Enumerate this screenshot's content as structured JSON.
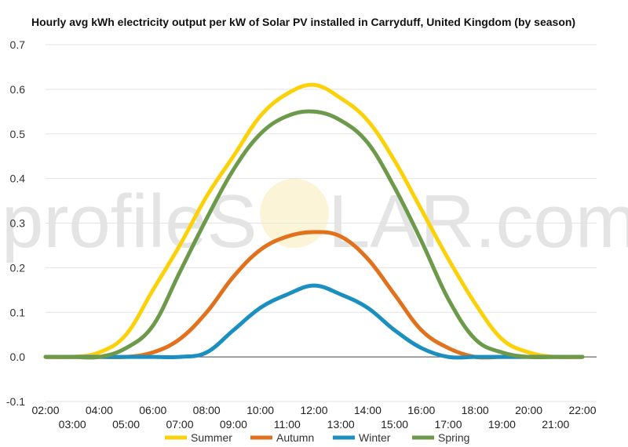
{
  "chart_data": {
    "type": "line",
    "title": "Hourly avg kWh electricity output per kW of Solar PV installed in Carryduff, United Kingdom (by season)",
    "watermark": {
      "left": "profileS",
      "right": "LAR.com",
      "sun_color": "#f3e08a"
    },
    "ylim": [
      -0.1,
      0.7
    ],
    "yticks": [
      "-0.1",
      "0.0",
      "0.1",
      "0.2",
      "0.3",
      "0.4",
      "0.5",
      "0.6",
      "0.7"
    ],
    "x": [
      "02:00",
      "03:00",
      "04:00",
      "05:00",
      "06:00",
      "07:00",
      "08:00",
      "09:00",
      "10:00",
      "11:00",
      "12:00",
      "13:00",
      "14:00",
      "15:00",
      "16:00",
      "17:00",
      "18:00",
      "19:00",
      "20:00",
      "21:00",
      "22:00"
    ],
    "legend_position": "bottom",
    "series": [
      {
        "name": "Summer",
        "color": "#fbd20a",
        "values": [
          0,
          0,
          0.01,
          0.05,
          0.15,
          0.25,
          0.36,
          0.45,
          0.54,
          0.59,
          0.61,
          0.58,
          0.53,
          0.44,
          0.33,
          0.22,
          0.12,
          0.04,
          0.01,
          0,
          0
        ]
      },
      {
        "name": "Autumn",
        "color": "#e2711d",
        "values": [
          0,
          0,
          0,
          0,
          0.01,
          0.04,
          0.1,
          0.18,
          0.24,
          0.27,
          0.28,
          0.27,
          0.22,
          0.14,
          0.06,
          0.02,
          0,
          0,
          0,
          0,
          0
        ]
      },
      {
        "name": "Winter",
        "color": "#1a8fc0",
        "values": [
          0,
          0,
          0,
          0,
          0,
          0,
          0.01,
          0.06,
          0.11,
          0.14,
          0.16,
          0.14,
          0.11,
          0.06,
          0.02,
          0,
          0,
          0,
          0,
          0,
          0
        ]
      },
      {
        "name": "Spring",
        "color": "#6c9a4a",
        "values": [
          0,
          0,
          0,
          0.02,
          0.07,
          0.19,
          0.31,
          0.42,
          0.5,
          0.54,
          0.55,
          0.53,
          0.48,
          0.38,
          0.26,
          0.13,
          0.04,
          0.01,
          0,
          0,
          0
        ]
      }
    ]
  }
}
